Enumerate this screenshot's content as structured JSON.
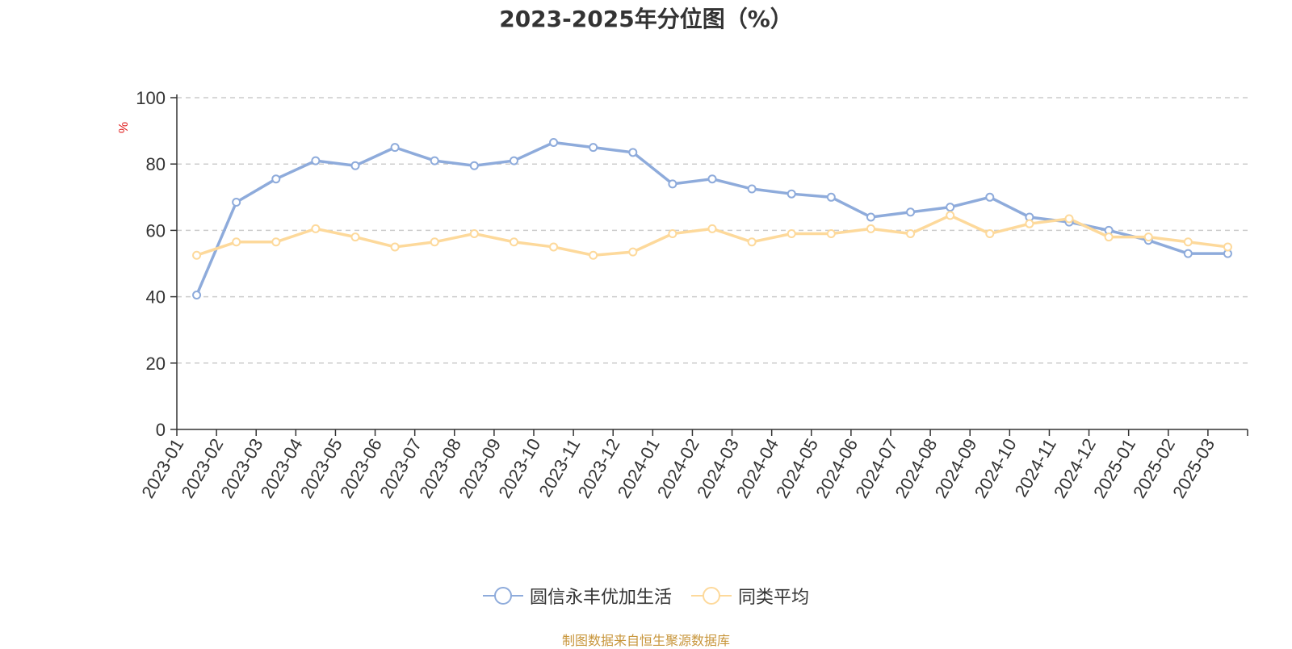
{
  "chart_data": {
    "type": "line",
    "title": "2023-2025年分位图（%）",
    "ylabel": "%",
    "xlabel": "",
    "ylim": [
      0,
      100
    ],
    "yticks": [
      0,
      20,
      40,
      60,
      80,
      100
    ],
    "grid": true,
    "legend_position": "bottom",
    "categories": [
      "2023-01",
      "2023-02",
      "2023-03",
      "2023-04",
      "2023-05",
      "2023-06",
      "2023-07",
      "2023-08",
      "2023-09",
      "2023-10",
      "2023-11",
      "2023-12",
      "2024-01",
      "2024-02",
      "2024-03",
      "2024-04",
      "2024-05",
      "2024-06",
      "2024-07",
      "2024-08",
      "2024-09",
      "2024-10",
      "2024-11",
      "2024-12",
      "2025-01",
      "2025-02",
      "2025-03"
    ],
    "series": [
      {
        "name": "圆信永丰优加生活",
        "color": "#8eabdb",
        "values": [
          40.5,
          68.5,
          75.5,
          81,
          79.5,
          85,
          81,
          79.5,
          81,
          86.5,
          85,
          83.5,
          74,
          75.5,
          72.5,
          71,
          70,
          64,
          65.5,
          67,
          70,
          64,
          62.5,
          60,
          57,
          53,
          53
        ]
      },
      {
        "name": "同类平均",
        "color": "#fdd99b",
        "values": [
          52.5,
          56.5,
          56.5,
          60.5,
          58,
          55,
          56.5,
          59,
          56.5,
          55,
          52.5,
          53.5,
          59,
          60.5,
          56.5,
          59,
          59,
          60.5,
          59,
          64.5,
          59,
          62,
          63.5,
          58,
          58,
          56.5,
          55
        ]
      }
    ]
  },
  "source_note": "制图数据来自恒生聚源数据库"
}
